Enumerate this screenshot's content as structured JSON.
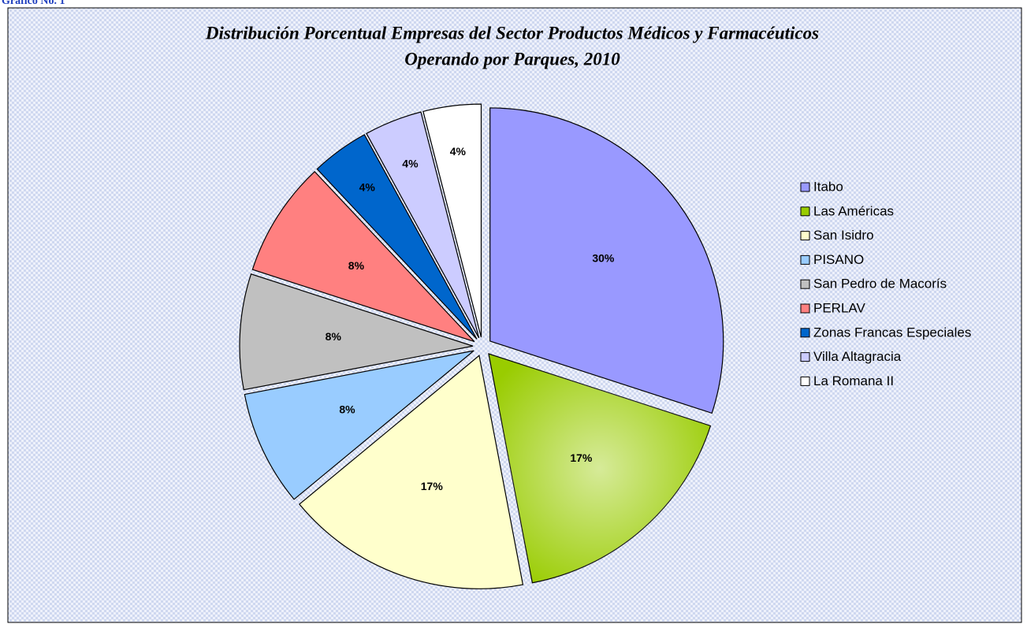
{
  "header": "Gráfico No. 1",
  "chart_data": {
    "type": "pie",
    "title": [
      "Distribución Porcentual Empresas del Sector Productos Médicos y Farmacéuticos",
      "Operando por Parques, 2010"
    ],
    "categories": [
      "Itabo",
      "Las Américas",
      "San Isidro",
      "PISANO",
      "San Pedro de Macorís",
      "PERLAV",
      "Zonas Francas Especiales",
      "Villa Altagracia",
      "La Romana II"
    ],
    "values": [
      30,
      17,
      17,
      8,
      8,
      8,
      4,
      4,
      4
    ],
    "value_labels": [
      "30%",
      "17%",
      "17%",
      "8%",
      "8%",
      "8%",
      "4%",
      "4%",
      "4%"
    ],
    "colors": [
      "#9999ff",
      "#99cc00",
      "#ffffcc",
      "#99ccff",
      "#c0c0c0",
      "#ff8080",
      "#0066cc",
      "#ccccff",
      "#ffffff"
    ],
    "legend": "right"
  }
}
